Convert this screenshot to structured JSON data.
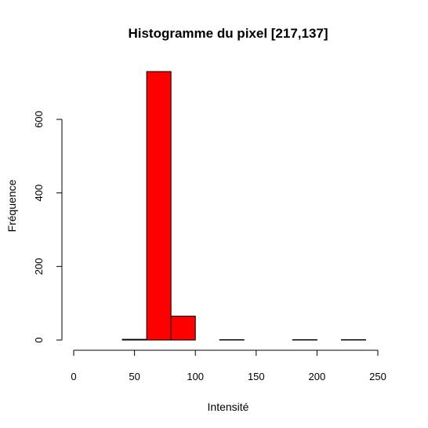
{
  "chart_data": {
    "type": "bar",
    "title": "Histogramme du pixel [217,137]",
    "xlabel": "Intensité",
    "ylabel": "Fréquence",
    "bar_color": "#ff0000",
    "xlim": [
      0,
      250
    ],
    "ylim": [
      0,
      750
    ],
    "x_ticks": [
      0,
      50,
      100,
      150,
      200,
      250
    ],
    "y_ticks": [
      0,
      200,
      400,
      600
    ],
    "bins": [
      {
        "start": 40,
        "end": 60,
        "count": 2
      },
      {
        "start": 60,
        "end": 80,
        "count": 730
      },
      {
        "start": 80,
        "end": 100,
        "count": 65
      },
      {
        "start": 100,
        "end": 120,
        "count": 0
      },
      {
        "start": 120,
        "end": 140,
        "count": 1
      },
      {
        "start": 140,
        "end": 160,
        "count": 0
      },
      {
        "start": 160,
        "end": 180,
        "count": 0
      },
      {
        "start": 180,
        "end": 200,
        "count": 1
      },
      {
        "start": 200,
        "end": 220,
        "count": 0
      },
      {
        "start": 220,
        "end": 240,
        "count": 1
      }
    ]
  }
}
